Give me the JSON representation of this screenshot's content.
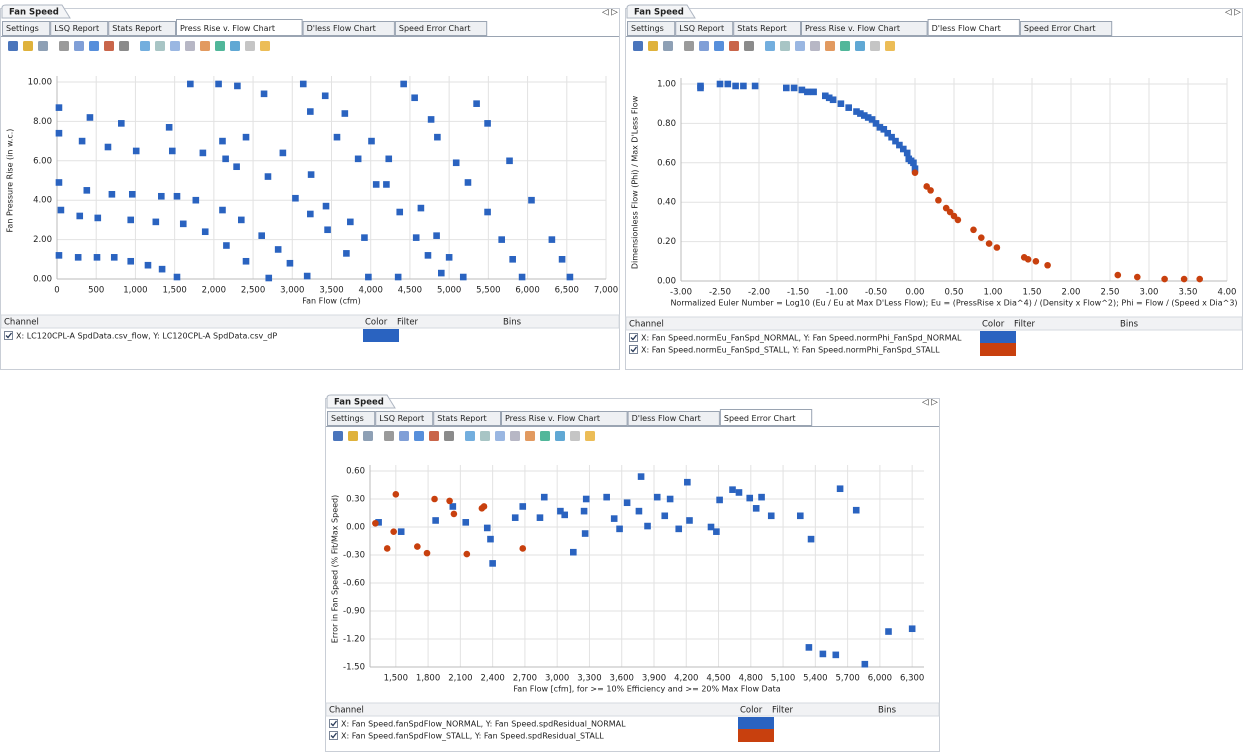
{
  "panels": [
    {
      "title": "Fan Speed",
      "tabs": [
        "Settings",
        "LSQ Report",
        "Stats Report",
        "Press Rise v. Flow Chart",
        "D'less Flow Chart",
        "Speed Error Chart"
      ],
      "active_tab": 3,
      "channel_header": [
        "Channel",
        "Color",
        "Filter",
        "Bins"
      ]
    },
    {
      "title": "Fan Speed",
      "tabs": [
        "Settings",
        "LSQ Report",
        "Stats Report",
        "Press Rise v. Flow Chart",
        "D'less Flow Chart",
        "Speed Error Chart"
      ],
      "active_tab": 4,
      "channel_header": [
        "Channel",
        "Color",
        "Filter",
        "Bins"
      ]
    },
    {
      "title": "Fan Speed",
      "tabs": [
        "Settings",
        "LSQ Report",
        "Stats Report",
        "Press Rise v. Flow Chart",
        "D'less Flow Chart",
        "Speed Error Chart"
      ],
      "active_tab": 5,
      "channel_header": [
        "Channel",
        "Color",
        "Filter",
        "Bins"
      ]
    }
  ],
  "chart_data": [
    {
      "type": "scatter",
      "x_label": "Fan Flow (cfm)",
      "y_label": "Fan Pressure Rise (in w.c.)",
      "label_color": "#3b74c4",
      "grid": true,
      "xlim": [
        0,
        7000
      ],
      "ylim": [
        0,
        10
      ],
      "xticks": [
        0,
        500,
        {
          "value": 1000,
          "label": "1,000"
        },
        {
          "value": 1500,
          "label": "1,500"
        },
        {
          "value": 2000,
          "label": "2,000"
        },
        {
          "value": 2500,
          "label": "2,500"
        },
        {
          "value": 3000,
          "label": "3,000"
        },
        {
          "value": 3500,
          "label": "3,500"
        },
        {
          "value": 4000,
          "label": "4,000"
        },
        {
          "value": 4500,
          "label": "4,500"
        },
        {
          "value": 5000,
          "label": "5,000"
        },
        {
          "value": 5500,
          "label": "5,500"
        },
        {
          "value": 6000,
          "label": "6,000"
        },
        {
          "value": 6500,
          "label": "6,500"
        },
        {
          "value": 7000,
          "label": "7,000"
        }
      ],
      "yticks": [
        {
          "value": 0,
          "label": "0.00"
        },
        {
          "value": 2,
          "label": "2.00"
        },
        {
          "value": 4,
          "label": "4.00"
        },
        {
          "value": 6,
          "label": "6.00"
        },
        {
          "value": 8,
          "label": "8.00"
        },
        {
          "value": 10,
          "label": "10.00"
        }
      ],
      "series": [
        {
          "name": "X: LC120CPL-A SpdData.csv_flow, Y: LC120CPL-A SpdData.csv_dP",
          "color": "#2a63c0",
          "marker": "square",
          "x": [
            25,
            25,
            25,
            50,
            25,
            320,
            290,
            270,
            420,
            380,
            520,
            510,
            650,
            700,
            730,
            820,
            960,
            940,
            940,
            1010,
            1160,
            1430,
            1470,
            1330,
            1260,
            1340,
            1530,
            1530,
            1700,
            1610,
            1770,
            1860,
            1890,
            2060,
            2110,
            2110,
            2150,
            2160,
            2300,
            2290,
            2350,
            2410,
            2410,
            2640,
            2690,
            2610,
            2700,
            2820,
            2880,
            2970,
            3040,
            3140,
            3230,
            3240,
            3230,
            3190,
            3420,
            3430,
            3450,
            3570,
            3670,
            3740,
            3690,
            3840,
            3920,
            3970,
            4010,
            4070,
            4230,
            4200,
            4350,
            4370,
            4420,
            4560,
            4580,
            4640,
            4730,
            4770,
            4840,
            4850,
            4900,
            5000,
            5090,
            5180,
            5240,
            5350,
            5490,
            5490,
            5770,
            5670,
            5810,
            5930,
            6050,
            6310,
            6440,
            6540
          ],
          "values": [
            8.7,
            7.4,
            4.9,
            3.5,
            1.2,
            7.0,
            3.2,
            1.1,
            8.2,
            4.5,
            3.1,
            1.1,
            6.7,
            4.3,
            1.1,
            7.9,
            4.3,
            3.0,
            0.9,
            6.5,
            0.7,
            7.7,
            6.5,
            4.2,
            2.9,
            0.5,
            0.1,
            4.2,
            9.9,
            2.8,
            4.0,
            6.4,
            2.4,
            9.9,
            7.0,
            3.5,
            6.1,
            1.7,
            9.8,
            5.7,
            3.0,
            7.2,
            0.9,
            9.4,
            5.2,
            2.2,
            0.05,
            1.5,
            6.4,
            0.8,
            4.1,
            9.9,
            8.5,
            5.3,
            3.3,
            0.15,
            9.3,
            3.7,
            2.5,
            7.2,
            8.4,
            2.9,
            1.3,
            6.1,
            2.1,
            0.1,
            7.0,
            4.8,
            6.1,
            4.8,
            0.1,
            3.4,
            9.9,
            9.2,
            2.1,
            3.6,
            1.2,
            8.1,
            2.2,
            7.2,
            0.3,
            1.1,
            5.9,
            0.1,
            4.9,
            8.9,
            7.9,
            3.4,
            6.0,
            2.0,
            1.0,
            0.1,
            4.0,
            2.0,
            1.0,
            0.1
          ]
        }
      ]
    },
    {
      "type": "scatter",
      "x_label": "Normalized Euler Number = Log10 (Eu / Eu at Max D'Less Flow); Eu = (PressRise x Dia^4) / (Density x Flow^2); Phi = Flow / (Speed x Dia^3)",
      "y_label": "Dimensionless Flow (Phi) / Max D'Less Flow",
      "label_color": "#222222",
      "grid": true,
      "xlim": [
        -3,
        4
      ],
      "ylim": [
        0,
        1
      ],
      "xticks": [
        {
          "value": -3,
          "label": "-3.00"
        },
        {
          "value": -2.5,
          "label": "-2.50"
        },
        {
          "value": -2,
          "label": "-2.00"
        },
        {
          "value": -1.5,
          "label": "-1.50"
        },
        {
          "value": -1,
          "label": "-1.00"
        },
        {
          "value": -0.5,
          "label": "-0.50"
        },
        {
          "value": 0,
          "label": "0.00"
        },
        {
          "value": 0.5,
          "label": "0.50"
        },
        {
          "value": 1,
          "label": "1.00"
        },
        {
          "value": 1.5,
          "label": "1.50"
        },
        {
          "value": 2,
          "label": "2.00"
        },
        {
          "value": 2.5,
          "label": "2.50"
        },
        {
          "value": 3,
          "label": "3.00"
        },
        {
          "value": 3.5,
          "label": "3.50"
        },
        {
          "value": 4,
          "label": "4.00"
        }
      ],
      "yticks": [
        {
          "value": 0,
          "label": "0.00"
        },
        {
          "value": 0.2,
          "label": "0.20"
        },
        {
          "value": 0.4,
          "label": "0.40"
        },
        {
          "value": 0.6,
          "label": "0.60"
        },
        {
          "value": 0.8,
          "label": "0.80"
        },
        {
          "value": 1,
          "label": "1.00"
        }
      ],
      "series": [
        {
          "name": "X: Fan Speed.normEu_FanSpd_NORMAL, Y: Fan Speed.normPhi_FanSpd_NORMAL",
          "color": "#2a63c0",
          "marker": "square",
          "x": [
            -2.75,
            -2.75,
            -2.5,
            -2.4,
            -2.3,
            -2.2,
            -2.05,
            -1.65,
            -1.55,
            -1.45,
            -1.38,
            -1.3,
            -1.15,
            -1.1,
            -1.05,
            -0.95,
            -0.85,
            -0.75,
            -0.7,
            -0.65,
            -0.6,
            -0.55,
            -0.5,
            -0.45,
            -0.4,
            -0.35,
            -0.3,
            -0.25,
            -0.2,
            -0.15,
            -0.1,
            -0.08,
            -0.05,
            -0.02,
            0.0
          ],
          "values": [
            0.99,
            0.98,
            1.0,
            1.0,
            0.99,
            0.99,
            0.99,
            0.98,
            0.98,
            0.97,
            0.96,
            0.96,
            0.94,
            0.93,
            0.92,
            0.9,
            0.88,
            0.86,
            0.85,
            0.84,
            0.83,
            0.82,
            0.8,
            0.78,
            0.77,
            0.75,
            0.73,
            0.71,
            0.69,
            0.67,
            0.65,
            0.62,
            0.61,
            0.6,
            0.57
          ]
        },
        {
          "name": "X: Fan Speed.normEu_FanSpd_STALL, Y: Fan Speed.normPhi_FanSpd_STALL",
          "color": "#c8400e",
          "marker": "circle",
          "x": [
            0.0,
            0.15,
            0.2,
            0.3,
            0.4,
            0.45,
            0.5,
            0.55,
            0.75,
            0.85,
            0.95,
            1.05,
            1.4,
            1.45,
            1.55,
            1.7,
            2.6,
            2.85,
            3.2,
            3.45,
            3.65
          ],
          "values": [
            0.55,
            0.48,
            0.46,
            0.41,
            0.37,
            0.35,
            0.33,
            0.31,
            0.26,
            0.22,
            0.19,
            0.17,
            0.12,
            0.11,
            0.1,
            0.08,
            0.03,
            0.02,
            0.01,
            0.01,
            0.01
          ]
        }
      ]
    },
    {
      "type": "scatter",
      "x_label": "Fan Flow [cfm], for >= 10% Efficiency and >= 20% Max Flow Data",
      "y_label": "Error in Fan Speed (% Fit/Max Speed)",
      "label_color": "#222222",
      "grid": true,
      "xlim": [
        1260,
        6410
      ],
      "ylim": [
        -1.5,
        0.6
      ],
      "xticks": [
        {
          "value": 1500,
          "label": "1,500"
        },
        {
          "value": 1800,
          "label": "1,800"
        },
        {
          "value": 2100,
          "label": "2,100"
        },
        {
          "value": 2400,
          "label": "2,400"
        },
        {
          "value": 2700,
          "label": "2,700"
        },
        {
          "value": 3000,
          "label": "3,000"
        },
        {
          "value": 3300,
          "label": "3,300"
        },
        {
          "value": 3600,
          "label": "3,600"
        },
        {
          "value": 3900,
          "label": "3,900"
        },
        {
          "value": 4200,
          "label": "4,200"
        },
        {
          "value": 4500,
          "label": "4,500"
        },
        {
          "value": 4800,
          "label": "4,800"
        },
        {
          "value": 5100,
          "label": "5,100"
        },
        {
          "value": 5400,
          "label": "5,400"
        },
        {
          "value": 5700,
          "label": "5,700"
        },
        {
          "value": 6000,
          "label": "6,000"
        },
        {
          "value": 6300,
          "label": "6,300"
        }
      ],
      "yticks": [
        {
          "value": -1.5,
          "label": "-1.50"
        },
        {
          "value": -1.2,
          "label": "-1.20"
        },
        {
          "value": -0.9,
          "label": "-0.90"
        },
        {
          "value": -0.6,
          "label": "-0.60"
        },
        {
          "value": -0.3,
          "label": "-0.30"
        },
        {
          "value": 0,
          "label": "0.00"
        },
        {
          "value": 0.3,
          "label": "0.30"
        },
        {
          "value": 0.6,
          "label": "0.60"
        }
      ],
      "series": [
        {
          "name": "X: Fan Speed.fanSpdFlow_NORMAL, Y: Fan Speed.spdResidual_NORMAL",
          "color": "#2a63c0",
          "marker": "square",
          "x": [
            1340,
            1550,
            1870,
            2030,
            2150,
            2350,
            2380,
            2400,
            2610,
            2680,
            2840,
            2880,
            3030,
            3070,
            3150,
            3250,
            3260,
            3270,
            3460,
            3530,
            3580,
            3650,
            3760,
            3780,
            3840,
            3930,
            4000,
            4050,
            4130,
            4210,
            4230,
            4430,
            4480,
            4510,
            4630,
            4690,
            4790,
            4850,
            4900,
            4990,
            5260,
            5360,
            5340,
            5470,
            5590,
            5630,
            5780,
            5860,
            6080,
            6300
          ],
          "values": [
            0.05,
            -0.05,
            0.07,
            0.22,
            0.05,
            -0.01,
            -0.13,
            -0.39,
            0.1,
            0.22,
            0.1,
            0.32,
            0.17,
            0.13,
            -0.27,
            0.17,
            -0.07,
            0.3,
            0.32,
            0.09,
            -0.02,
            0.26,
            0.17,
            0.54,
            0.01,
            0.32,
            0.12,
            0.3,
            -0.02,
            0.48,
            0.07,
            0.0,
            -0.05,
            0.29,
            0.4,
            0.37,
            0.31,
            0.2,
            0.32,
            0.12,
            0.12,
            -0.13,
            -1.29,
            -1.36,
            -1.37,
            0.41,
            0.18,
            -1.47,
            -1.12,
            -1.09
          ]
        },
        {
          "name": "X: Fan Speed.fanSpdFlow_STALL, Y: Fan Speed.spdResidual_STALL",
          "color": "#c8400e",
          "marker": "circle",
          "x": [
            1310,
            1420,
            1480,
            1500,
            1700,
            1790,
            1860,
            2040,
            2000,
            2160,
            2300,
            2320,
            2680
          ],
          "values": [
            0.04,
            -0.23,
            -0.05,
            0.35,
            -0.21,
            -0.28,
            0.3,
            0.14,
            0.28,
            -0.29,
            0.2,
            0.22,
            -0.23
          ]
        }
      ]
    }
  ]
}
